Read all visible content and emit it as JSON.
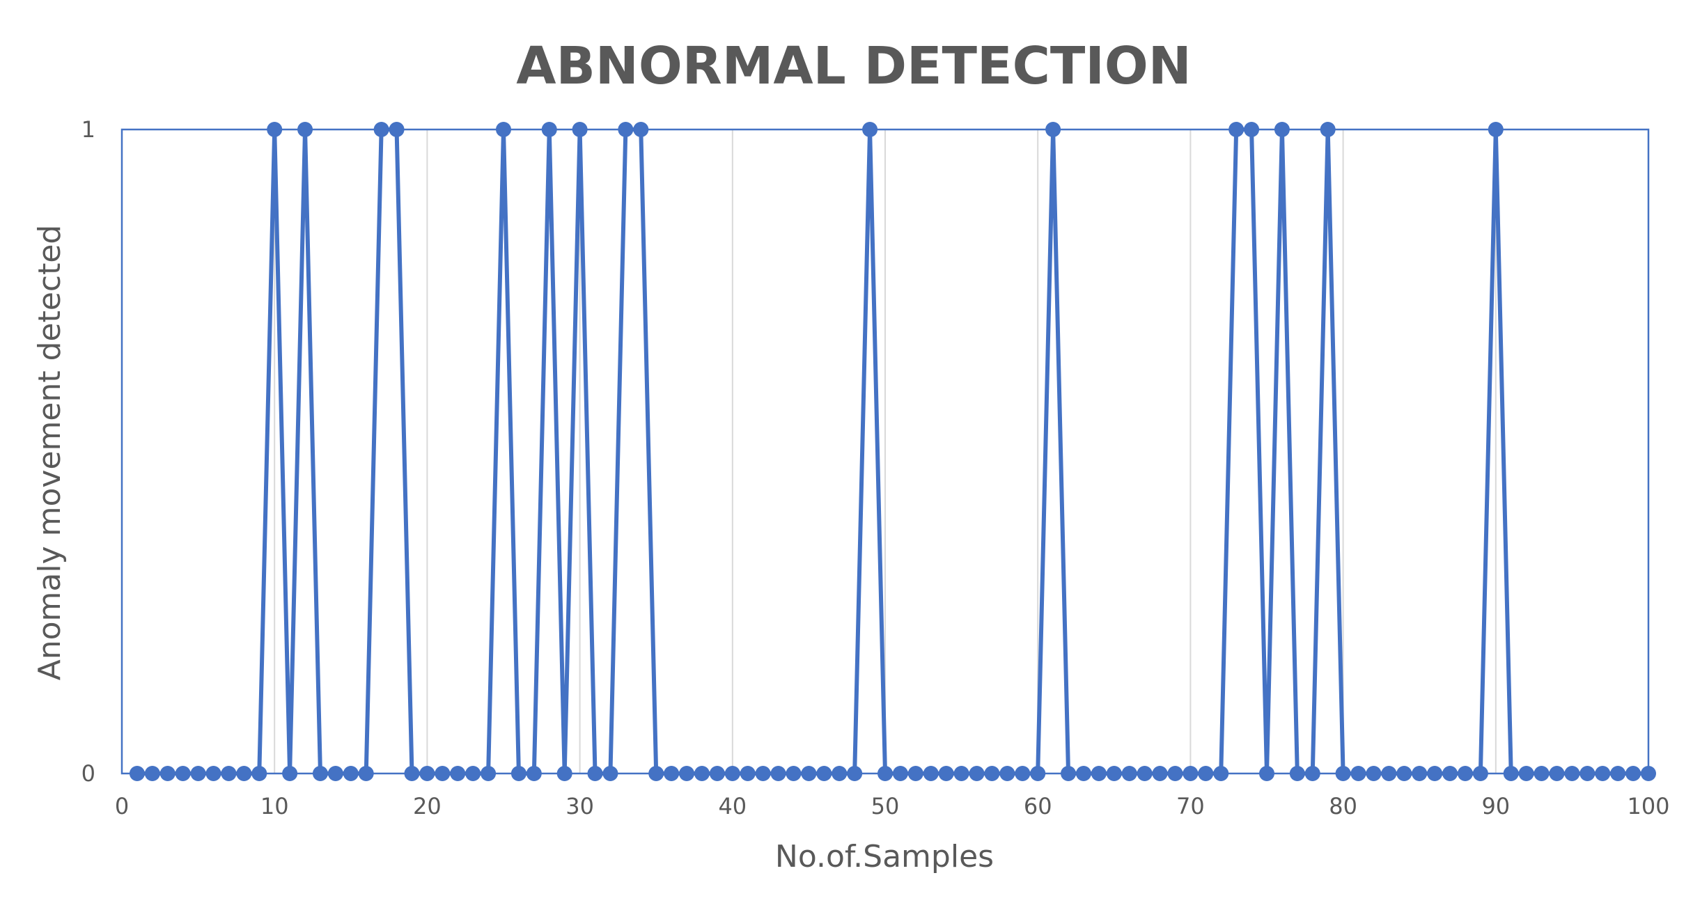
{
  "chart_data": {
    "type": "line",
    "title": "ABNORMAL DETECTION",
    "xlabel": "No.of.Samples",
    "ylabel": "Anomaly movement detected",
    "xlim": [
      0,
      100
    ],
    "ylim": [
      0,
      1
    ],
    "x_ticks": [
      "0",
      "10",
      "20",
      "30",
      "40",
      "50",
      "60",
      "70",
      "80",
      "90",
      "100"
    ],
    "y_ticks": [
      "0",
      "1"
    ],
    "grid": "vertical",
    "legend": "none",
    "markers": "circle",
    "series": [
      {
        "color": "#4472C4",
        "x": [
          1,
          2,
          3,
          4,
          5,
          6,
          7,
          8,
          9,
          10,
          11,
          12,
          13,
          14,
          15,
          16,
          17,
          18,
          19,
          20,
          21,
          22,
          23,
          24,
          25,
          26,
          27,
          28,
          29,
          30,
          31,
          32,
          33,
          34,
          35,
          36,
          37,
          38,
          39,
          40,
          41,
          42,
          43,
          44,
          45,
          46,
          47,
          48,
          49,
          50,
          51,
          52,
          53,
          54,
          55,
          56,
          57,
          58,
          59,
          60,
          61,
          62,
          63,
          64,
          65,
          66,
          67,
          68,
          69,
          70,
          71,
          72,
          73,
          74,
          75,
          76,
          77,
          78,
          79,
          80,
          81,
          82,
          83,
          84,
          85,
          86,
          87,
          88,
          89,
          90,
          91,
          92,
          93,
          94,
          95,
          96,
          97,
          98,
          99,
          100
        ],
        "y": [
          0,
          0,
          0,
          0,
          0,
          0,
          0,
          0,
          0,
          1,
          0,
          1,
          0,
          0,
          0,
          0,
          1,
          1,
          0,
          0,
          0,
          0,
          0,
          0,
          1,
          0,
          0,
          1,
          0,
          1,
          0,
          0,
          1,
          1,
          0,
          0,
          0,
          0,
          0,
          0,
          0,
          0,
          0,
          0,
          0,
          0,
          0,
          0,
          1,
          0,
          0,
          0,
          0,
          0,
          0,
          0,
          0,
          0,
          0,
          0,
          1,
          0,
          0,
          0,
          0,
          0,
          0,
          0,
          0,
          0,
          0,
          0,
          1,
          1,
          0,
          1,
          0,
          0,
          1,
          0,
          0,
          0,
          0,
          0,
          0,
          0,
          0,
          0,
          0,
          1,
          0,
          0,
          0,
          0,
          0,
          0,
          0,
          0,
          0,
          0
        ]
      }
    ]
  }
}
